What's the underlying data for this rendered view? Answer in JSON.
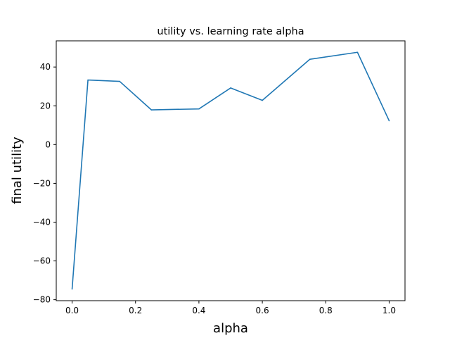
{
  "chart_data": {
    "type": "line",
    "title": "utility vs. learning rate alpha",
    "xlabel": "alpha",
    "ylabel": "final utility",
    "xlim": [
      -0.05,
      1.05
    ],
    "ylim": [
      -80.5,
      53.5
    ],
    "xticks": [
      0.0,
      0.2,
      0.4,
      0.6,
      0.8,
      1.0
    ],
    "xtick_labels": [
      "0.0",
      "0.2",
      "0.4",
      "0.6",
      "0.8",
      "1.0"
    ],
    "yticks": [
      -80,
      -60,
      -40,
      -20,
      0,
      20,
      40
    ],
    "ytick_labels": [
      "−80",
      "−60",
      "−40",
      "−20",
      "0",
      "20",
      "40"
    ],
    "grid": false,
    "series": [
      {
        "color": "#1f77b4",
        "x": [
          0.0,
          0.05,
          0.15,
          0.25,
          0.4,
          0.5,
          0.6,
          0.75,
          0.9,
          1.0
        ],
        "y": [
          -74.5,
          33.3,
          32.6,
          17.9,
          18.4,
          29.2,
          22.8,
          44.0,
          47.6,
          12.3
        ]
      }
    ]
  }
}
